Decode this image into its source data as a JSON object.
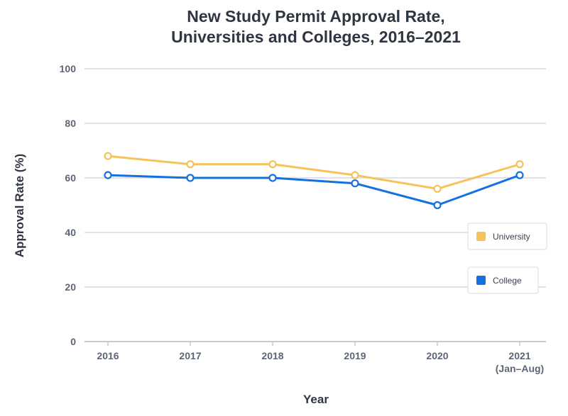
{
  "chart_data": {
    "type": "line",
    "title_lines": [
      "New Study Permit Approval Rate,",
      "Universities and Colleges, 2016–2021"
    ],
    "xlabel": "Year",
    "ylabel": "Approval Rate (%)",
    "categories": [
      {
        "label": "2016",
        "sub": ""
      },
      {
        "label": "2017",
        "sub": ""
      },
      {
        "label": "2018",
        "sub": ""
      },
      {
        "label": "2019",
        "sub": ""
      },
      {
        "label": "2020",
        "sub": ""
      },
      {
        "label": "2021",
        "sub": "(Jan–Aug)"
      }
    ],
    "yticks": [
      0,
      20,
      40,
      60,
      80,
      100
    ],
    "ylim": [
      0,
      100
    ],
    "grid": true,
    "series": [
      {
        "name": "University",
        "color": "#f5c35a",
        "values": [
          68,
          65,
          65,
          61,
          56,
          65
        ]
      },
      {
        "name": "College",
        "color": "#1570e0",
        "values": [
          61,
          60,
          60,
          58,
          50,
          61
        ]
      }
    ],
    "legend_position": "right"
  }
}
